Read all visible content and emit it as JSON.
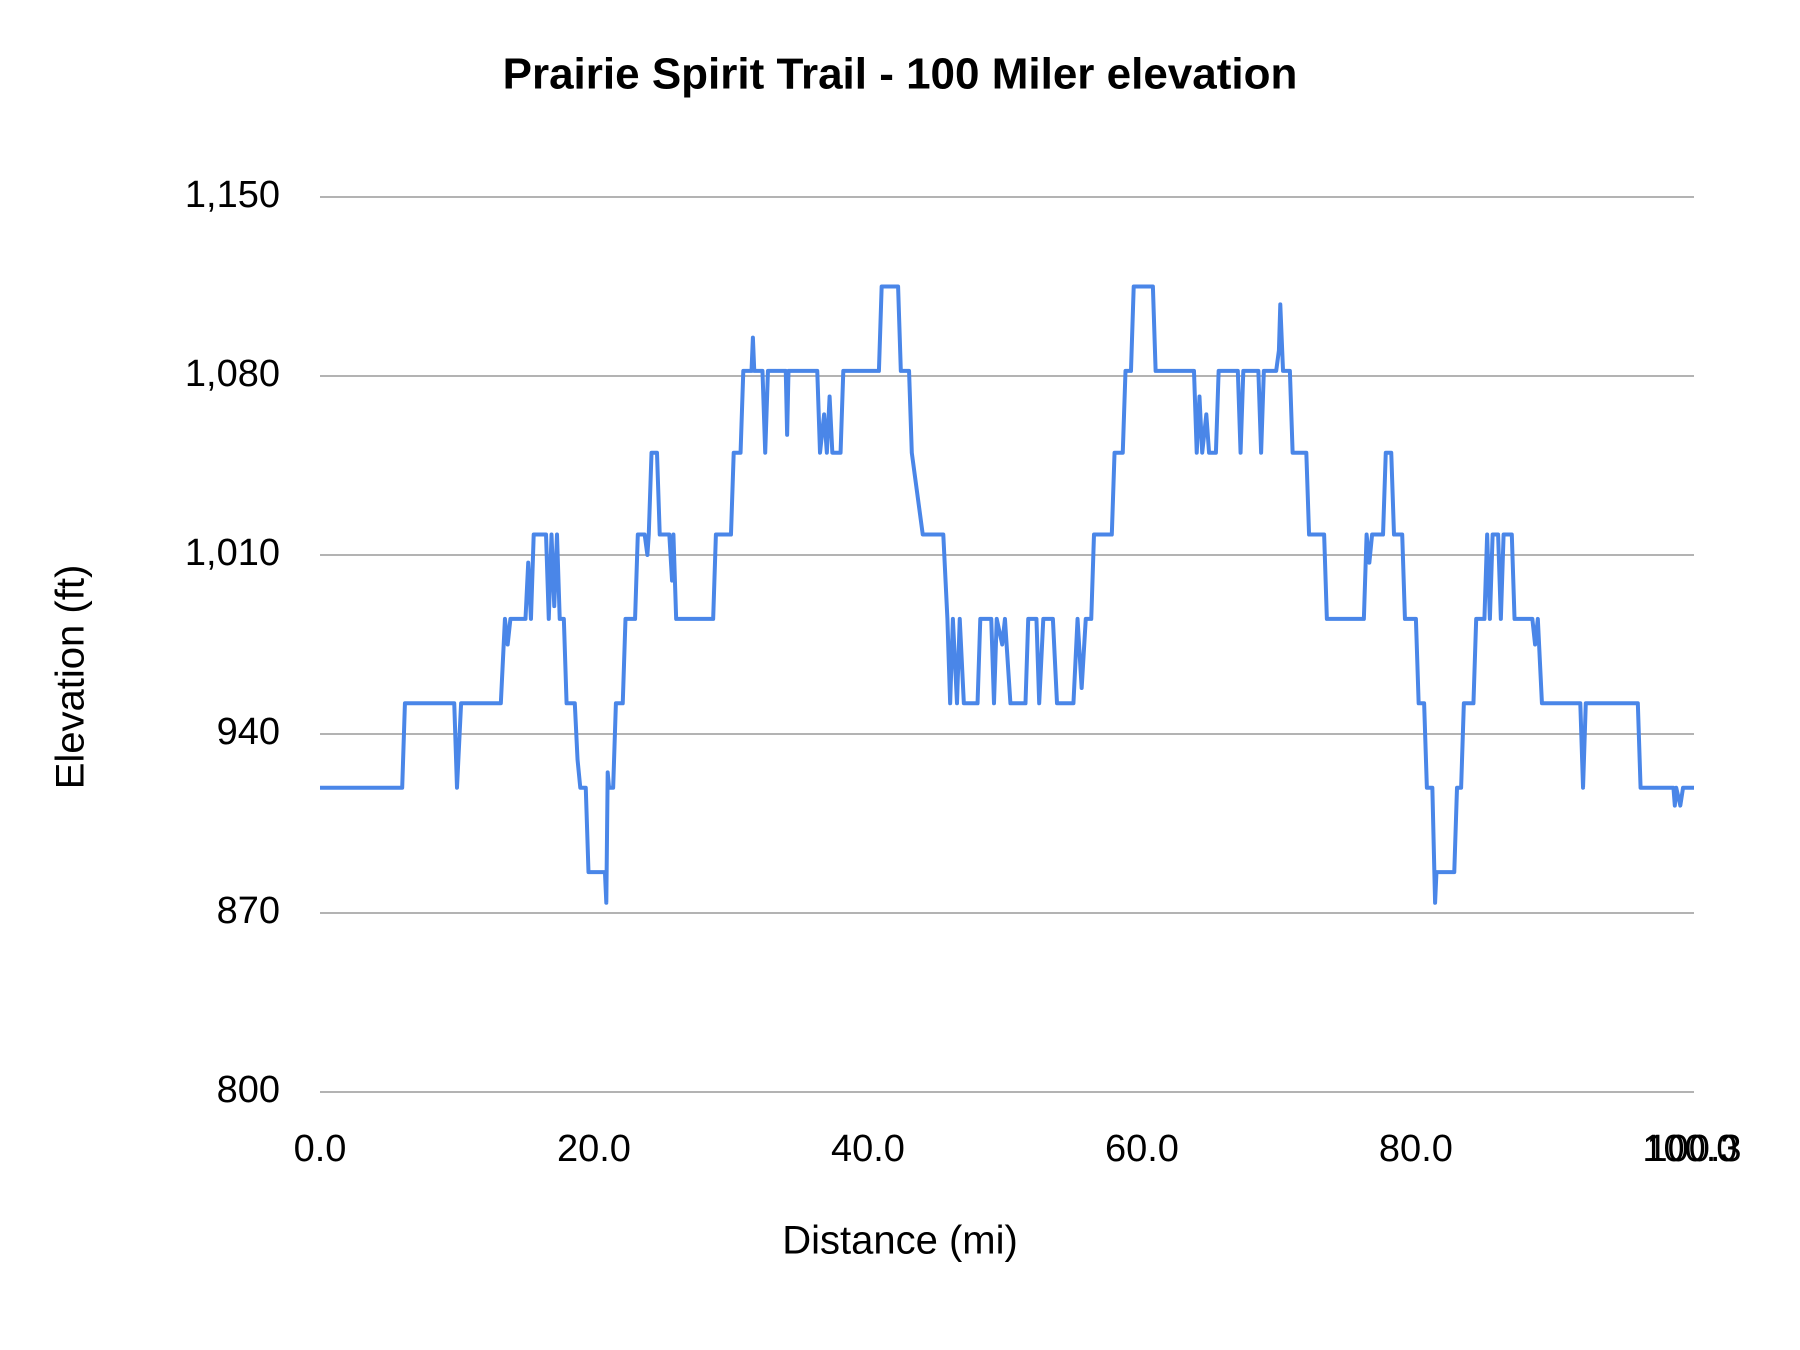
{
  "chart_data": {
    "type": "line",
    "title": "Prairie Spirit Trail - 100 Miler elevation",
    "x_label": "Distance (mi)",
    "y_label": "Elevation (ft)",
    "color": "#4a86e8",
    "grid": true,
    "xlim": [
      0,
      100.3
    ],
    "ylim": [
      800,
      1150
    ],
    "xticks": [
      {
        "value": 0,
        "label": "0.0"
      },
      {
        "value": 20,
        "label": "20.0"
      },
      {
        "value": 40,
        "label": "40.0"
      },
      {
        "value": 60,
        "label": "60.0"
      },
      {
        "value": 80,
        "label": "80.0"
      },
      {
        "value": 100,
        "label": "100.0"
      },
      {
        "value": 100.3,
        "label": "100.3"
      }
    ],
    "yticks": [
      800,
      870,
      940,
      {
        "value": 1010,
        "label": "1,010"
      },
      {
        "value": 1080,
        "label": "1,080"
      },
      {
        "value": 1150,
        "label": "1,150"
      }
    ],
    "x": [
      0,
      6.0,
      6.2,
      9.8,
      10.0,
      10.3,
      13.2,
      13.5,
      13.7,
      13.9,
      15.0,
      15.2,
      15.4,
      15.6,
      16.5,
      16.7,
      16.9,
      17.1,
      17.3,
      17.5,
      17.8,
      18.0,
      18.6,
      18.8,
      19.0,
      19.4,
      19.6,
      20.8,
      20.9,
      21.0,
      21.1,
      21.4,
      21.6,
      22.1,
      22.3,
      23.0,
      23.2,
      23.7,
      23.9,
      24.0,
      24.2,
      24.6,
      24.8,
      25.5,
      25.7,
      25.8,
      26.0,
      28.7,
      28.9,
      30.0,
      30.2,
      30.7,
      30.9,
      31.5,
      31.6,
      31.7,
      32.3,
      32.5,
      32.7,
      34.0,
      34.1,
      34.2,
      36.3,
      36.5,
      36.8,
      37.0,
      37.2,
      37.4,
      38.0,
      38.2,
      40.8,
      41.0,
      42.2,
      42.4,
      43.0,
      43.2,
      44.0,
      45.5,
      45.8,
      46.0,
      46.2,
      46.5,
      46.7,
      47.0,
      48.0,
      48.2,
      49.0,
      49.2,
      49.4,
      49.8,
      50.0,
      50.4,
      51.5,
      51.7,
      52.3,
      52.5,
      52.8,
      53.5,
      53.8,
      55.0,
      55.3,
      55.6,
      55.9,
      56.3,
      56.5,
      57.8,
      58.0,
      58.6,
      58.8,
      59.2,
      59.4,
      60.8,
      61.0,
      63.8,
      64.0,
      64.2,
      64.4,
      64.7,
      64.9,
      65.4,
      65.6,
      67.0,
      67.2,
      67.4,
      68.5,
      68.7,
      68.9,
      69.8,
      70.0,
      70.1,
      70.3,
      70.8,
      71.0,
      72.0,
      72.2,
      73.3,
      73.5,
      76.2,
      76.4,
      76.6,
      76.8,
      77.6,
      77.8,
      78.2,
      78.4,
      79.0,
      79.2,
      80.0,
      80.2,
      80.6,
      80.8,
      81.2,
      81.4,
      81.5,
      82.8,
      83.0,
      83.3,
      83.5,
      84.2,
      84.4,
      85.0,
      85.2,
      85.4,
      85.6,
      86.0,
      86.2,
      86.4,
      87.0,
      87.2,
      88.5,
      88.7,
      88.9,
      89.2,
      92.0,
      92.2,
      92.4,
      96.2,
      96.4,
      98.8,
      98.9,
      99.0,
      99.3,
      99.5,
      100.3
    ],
    "values": [
      919,
      919,
      952,
      952,
      919,
      952,
      952,
      985,
      975,
      985,
      985,
      1007,
      985,
      1018,
      1018,
      985,
      1018,
      990,
      1018,
      985,
      985,
      952,
      952,
      930,
      919,
      919,
      886,
      886,
      874,
      925,
      919,
      919,
      952,
      952,
      985,
      985,
      1018,
      1018,
      1010,
      1018,
      1050,
      1050,
      1018,
      1018,
      1000,
      1018,
      985,
      985,
      1018,
      1018,
      1050,
      1050,
      1082,
      1082,
      1095,
      1082,
      1082,
      1050,
      1082,
      1082,
      1057,
      1082,
      1082,
      1050,
      1065,
      1050,
      1072,
      1050,
      1050,
      1082,
      1082,
      1115,
      1115,
      1082,
      1082,
      1050,
      1018,
      1018,
      985,
      952,
      985,
      952,
      985,
      952,
      952,
      985,
      985,
      952,
      985,
      975,
      985,
      952,
      952,
      985,
      985,
      952,
      985,
      985,
      952,
      952,
      985,
      958,
      985,
      985,
      1018,
      1018,
      1050,
      1050,
      1082,
      1082,
      1115,
      1115,
      1082,
      1082,
      1050,
      1072,
      1050,
      1065,
      1050,
      1050,
      1082,
      1082,
      1050,
      1082,
      1082,
      1050,
      1082,
      1082,
      1090,
      1108,
      1082,
      1082,
      1050,
      1050,
      1018,
      1018,
      985,
      985,
      1018,
      1007,
      1018,
      1018,
      1050,
      1050,
      1018,
      1018,
      985,
      985,
      952,
      952,
      919,
      919,
      874,
      886,
      886,
      919,
      919,
      952,
      952,
      985,
      985,
      1018,
      985,
      1018,
      1018,
      985,
      1018,
      1018,
      985,
      985,
      975,
      985,
      952,
      952,
      919,
      952,
      952,
      919,
      919,
      912,
      919,
      912,
      919,
      919
    ]
  }
}
